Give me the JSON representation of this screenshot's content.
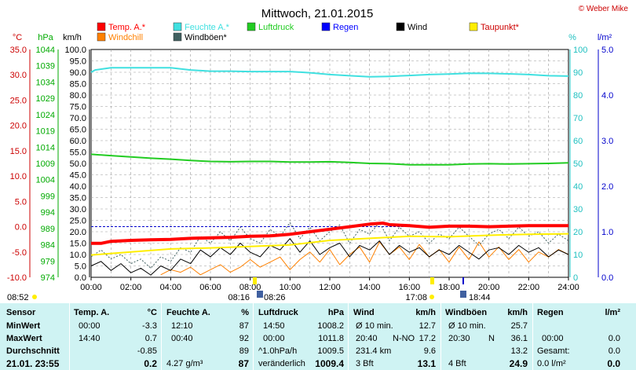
{
  "title": "Mittwoch, 21.01.2015",
  "copyright": "© Weber Mike",
  "legend": [
    {
      "label": "Temp. A.*",
      "color": "#ff0000"
    },
    {
      "label": "Feuchte A.*",
      "color": "#40e0e0"
    },
    {
      "label": "Luftdruck",
      "color": "#22cc22"
    },
    {
      "label": "Regen",
      "color": "#0000ff"
    },
    {
      "label": "Wind",
      "color": "#000000"
    },
    {
      "label": "Taupunkt*",
      "color": "#ffee00"
    },
    {
      "label": "Windchill",
      "color": "#ff8000"
    },
    {
      "label": "Windböen*",
      "color": "#406060"
    }
  ],
  "axis_units": {
    "temp": "°C",
    "pressure": "hPa",
    "wind": "km/h",
    "humidity": "%",
    "rain": "l/m²"
  },
  "events": {
    "left": "08:52",
    "sun1": "08:16",
    "sun2": "08:26",
    "sun3": "17:08",
    "sun4": "18:44"
  },
  "chart_data": {
    "type": "line",
    "title": "Mittwoch, 21.01.2015",
    "x_ticks": [
      "00:00",
      "02:00",
      "04:00",
      "06:00",
      "08:00",
      "10:00",
      "12:00",
      "14:00",
      "16:00",
      "18:00",
      "20:00",
      "22:00",
      "24:00"
    ],
    "xlim": [
      0,
      24
    ],
    "temp_ticks": [
      "35.0",
      "30.0",
      "25.0",
      "20.0",
      "15.0",
      "10.0",
      "5.0",
      "0.0",
      "-5.0",
      "-10.0"
    ],
    "temp_ylim": [
      -10,
      35
    ],
    "pressure_ticks": [
      "1044",
      "1039",
      "1034",
      "1029",
      "1024",
      "1019",
      "1014",
      "1009",
      "1004",
      "999",
      "994",
      "989",
      "984",
      "979",
      "974"
    ],
    "pressure_ylim": [
      974,
      1044
    ],
    "wind_ticks": [
      "100.0",
      "95.0",
      "90.0",
      "85.0",
      "80.0",
      "75.0",
      "70.0",
      "65.0",
      "60.0",
      "55.0",
      "50.0",
      "45.0",
      "40.0",
      "35.0",
      "30.0",
      "25.0",
      "20.0",
      "15.0",
      "10.0",
      "5.0",
      "0.0"
    ],
    "wind_ylim": [
      0,
      100
    ],
    "humidity_ticks": [
      "100",
      "90",
      "80",
      "70",
      "60",
      "50",
      "40",
      "30",
      "20",
      "10",
      "0"
    ],
    "humidity_ylim": [
      0,
      100
    ],
    "rain_ticks": [
      "5.0",
      "4.0",
      "3.0",
      "2.0",
      "1.0",
      "0.0"
    ],
    "rain_ylim": [
      0,
      5
    ],
    "series": [
      {
        "name": "Temp. A.*",
        "axis": "temp",
        "color": "#ff0000",
        "width": 4,
        "x": [
          0,
          0.5,
          1,
          2,
          3,
          4,
          5,
          6,
          7,
          8,
          9,
          10,
          11,
          12,
          13,
          14,
          14.67,
          15,
          16,
          17,
          18,
          19,
          20,
          21,
          22,
          23,
          24
        ],
        "y": [
          -3.3,
          -3.3,
          -2.9,
          -2.7,
          -2.6,
          -2.5,
          -2.3,
          -2.2,
          -2.1,
          -1.9,
          -1.8,
          -1.5,
          -1.0,
          -0.5,
          0,
          0.5,
          0.7,
          0.4,
          0.2,
          -0.1,
          0.1,
          0.1,
          0.0,
          0.1,
          0.2,
          0.2,
          0.2
        ]
      },
      {
        "name": "Feuchte A.*",
        "axis": "humidity",
        "color": "#40e0e0",
        "width": 2,
        "x": [
          0,
          0.2,
          1,
          2,
          3,
          4,
          5,
          6,
          7,
          8,
          9,
          10,
          11,
          12,
          13,
          14,
          15,
          16,
          17,
          18,
          19,
          20,
          21,
          22,
          23,
          24
        ],
        "y": [
          90,
          91,
          92,
          92,
          92,
          92,
          91,
          90.5,
          90.5,
          90.3,
          90.3,
          90.3,
          89.8,
          89,
          88.5,
          88,
          88.2,
          88.6,
          89,
          89.2,
          89.6,
          89.5,
          89.3,
          89,
          88.5,
          88.3
        ]
      },
      {
        "name": "Luftdruck",
        "axis": "pressure",
        "color": "#22cc22",
        "width": 2,
        "x": [
          0,
          1,
          2,
          3,
          4,
          5,
          6,
          7,
          8,
          9,
          10,
          11,
          12,
          13,
          14,
          15,
          16,
          17,
          18,
          19,
          20,
          21,
          22,
          23,
          24
        ],
        "y": [
          1011.8,
          1011.4,
          1011.0,
          1010.6,
          1010.3,
          1009.9,
          1009.6,
          1009.5,
          1009.6,
          1009.6,
          1009.4,
          1009.4,
          1009.5,
          1009.3,
          1009.0,
          1008.9,
          1008.6,
          1008.6,
          1008.6,
          1008.8,
          1008.9,
          1008.8,
          1008.9,
          1009.0,
          1009.2
        ]
      },
      {
        "name": "Taupunkt*",
        "axis": "temp",
        "color": "#ffee00",
        "width": 2,
        "x": [
          0,
          2,
          4,
          6,
          8,
          10,
          12,
          14,
          16,
          18,
          20,
          22,
          24
        ],
        "y": [
          -5.6,
          -5.0,
          -4.4,
          -4.2,
          -3.9,
          -3.6,
          -2.7,
          -2.3,
          -1.9,
          -2.0,
          -1.7,
          -1.5,
          -1.4
        ]
      },
      {
        "name": "Windchill",
        "axis": "temp",
        "color": "#ff8000",
        "width": 1,
        "x": [
          3.5,
          4,
          4.5,
          5,
          5.5,
          6,
          6.5,
          7,
          7.5,
          8,
          8.5,
          9,
          9.5,
          10,
          10.5,
          11,
          11.5,
          12,
          12.5,
          13,
          13.5,
          14,
          14.5,
          15,
          15.5,
          16,
          16.5,
          17,
          17.5,
          18,
          18.5,
          19,
          19.5,
          20,
          20.5,
          21,
          21.5,
          22,
          22.5,
          23,
          23.5,
          24
        ],
        "y": [
          -9.5,
          -8.5,
          -9.0,
          -8.0,
          -9.5,
          -8.5,
          -7.5,
          -9.0,
          -8.0,
          -6.5,
          -8.0,
          -7.0,
          -6.0,
          -8.5,
          -6.5,
          -5.0,
          -7.0,
          -4.5,
          -7.5,
          -5.5,
          -4.0,
          -7.0,
          -3.0,
          -5.5,
          -4.0,
          -6.5,
          -3.5,
          -6.0,
          -4.5,
          -7.0,
          -4.0,
          -6.5,
          -3.0,
          -6.0,
          -4.0,
          -6.5,
          -4.5,
          -7.0,
          -5.0,
          -6.0,
          -4.5,
          -5.5
        ]
      },
      {
        "name": "Wind",
        "axis": "wind",
        "color": "#000000",
        "width": 1,
        "x": [
          0,
          0.5,
          1,
          1.5,
          2,
          2.5,
          3,
          3.5,
          4,
          4.5,
          5,
          5.5,
          6,
          6.5,
          7,
          7.5,
          8,
          8.5,
          9,
          9.5,
          10,
          10.5,
          11,
          11.5,
          12,
          12.5,
          13,
          13.5,
          14,
          14.5,
          15,
          15.5,
          16,
          16.5,
          17,
          17.5,
          18,
          18.5,
          19,
          19.5,
          20,
          20.5,
          21,
          21.5,
          22,
          22.5,
          23,
          23.5,
          24
        ],
        "y": [
          5,
          7,
          3,
          6,
          2,
          4,
          1,
          5,
          3,
          8,
          6,
          12,
          9,
          13,
          10,
          15,
          11,
          9,
          14,
          12,
          17,
          11,
          16,
          10,
          13,
          15,
          9,
          14,
          12,
          16,
          10,
          14,
          11,
          13,
          9,
          12,
          10,
          14,
          11,
          8,
          12,
          13,
          10,
          14,
          11,
          13,
          9,
          12,
          10
        ]
      },
      {
        "name": "Windböen*",
        "axis": "wind",
        "color": "#406060",
        "width": 1,
        "dash": "2,2",
        "x": [
          0,
          0.5,
          1,
          1.5,
          2,
          2.5,
          3,
          3.5,
          4,
          4.5,
          5,
          5.5,
          6,
          6.5,
          7,
          7.5,
          8,
          8.5,
          9,
          9.5,
          10,
          10.5,
          11,
          11.5,
          12,
          12.5,
          13,
          13.5,
          14,
          14.5,
          15,
          15.5,
          16,
          16.5,
          17,
          17.5,
          18,
          18.5,
          19,
          19.5,
          20,
          20.5,
          21,
          21.5,
          22,
          22.5,
          23,
          23.5,
          24
        ],
        "y": [
          9,
          12,
          8,
          10,
          6,
          8,
          4,
          9,
          7,
          13,
          11,
          18,
          15,
          20,
          16,
          22,
          17,
          15,
          21,
          18,
          24,
          17,
          22,
          16,
          20,
          23,
          15,
          21,
          19,
          24,
          16,
          22,
          18,
          20,
          15,
          19,
          17,
          22,
          18,
          14,
          19,
          21,
          17,
          22,
          18,
          20,
          15,
          19,
          16
        ]
      }
    ]
  },
  "stats": {
    "headers": {
      "sensor": "Sensor",
      "temp": "Temp. A.",
      "temp_unit": "°C",
      "hum": "Feuchte A.",
      "hum_unit": "%",
      "press": "Luftdruck",
      "press_unit": "hPa",
      "wind": "Wind",
      "wind_unit": "km/h",
      "gust": "Windböen",
      "gust_unit": "km/h",
      "rain": "Regen",
      "rain_unit": "l/m²"
    },
    "min": {
      "label": "MinWert",
      "temp_time": "00:00",
      "temp_val": "-3.3",
      "hum_time": "12:10",
      "hum_val": "87",
      "press_time": "14:50",
      "press_val": "1008.2",
      "wind_a": "Ø 10 min.",
      "wind_val": "12.7",
      "gust_a": "Ø 10 min.",
      "gust_val": "25.7",
      "rain_val": ""
    },
    "max": {
      "label": "MaxWert",
      "temp_time": "14:40",
      "temp_val": "0.7",
      "hum_time": "00:40",
      "hum_val": "92",
      "press_time": "00:00",
      "press_val": "1011.8",
      "wind_a": "20:40",
      "wind_b": "N-NO",
      "wind_val": "17.2",
      "gust_a": "20:30",
      "gust_b": "N",
      "gust_val": "36.1",
      "rain_time": "00:00",
      "rain_val": "0.0"
    },
    "avg": {
      "label": "Durchschnitt",
      "temp_val": "-0.85",
      "hum_val": "89",
      "press_a": "^1.0hPa/h",
      "press_val": "1009.5",
      "wind_a": "231.4 km",
      "wind_val": "9.6",
      "gust_val": "13.2",
      "rain_a": "Gesamt:",
      "rain_val": "0.0"
    },
    "current": {
      "label": "21.01. 23:55",
      "temp_val": "0.2",
      "hum_a": "4.27 g/m³",
      "hum_val": "87",
      "press_a": "veränderlich",
      "press_val": "1009.4",
      "wind_a": "3 Bft",
      "wind_val": "13.1",
      "gust_a": "4 Bft",
      "gust_val": "24.9",
      "rain_a": "0.0 l/m²",
      "rain_val": "0.0"
    }
  }
}
